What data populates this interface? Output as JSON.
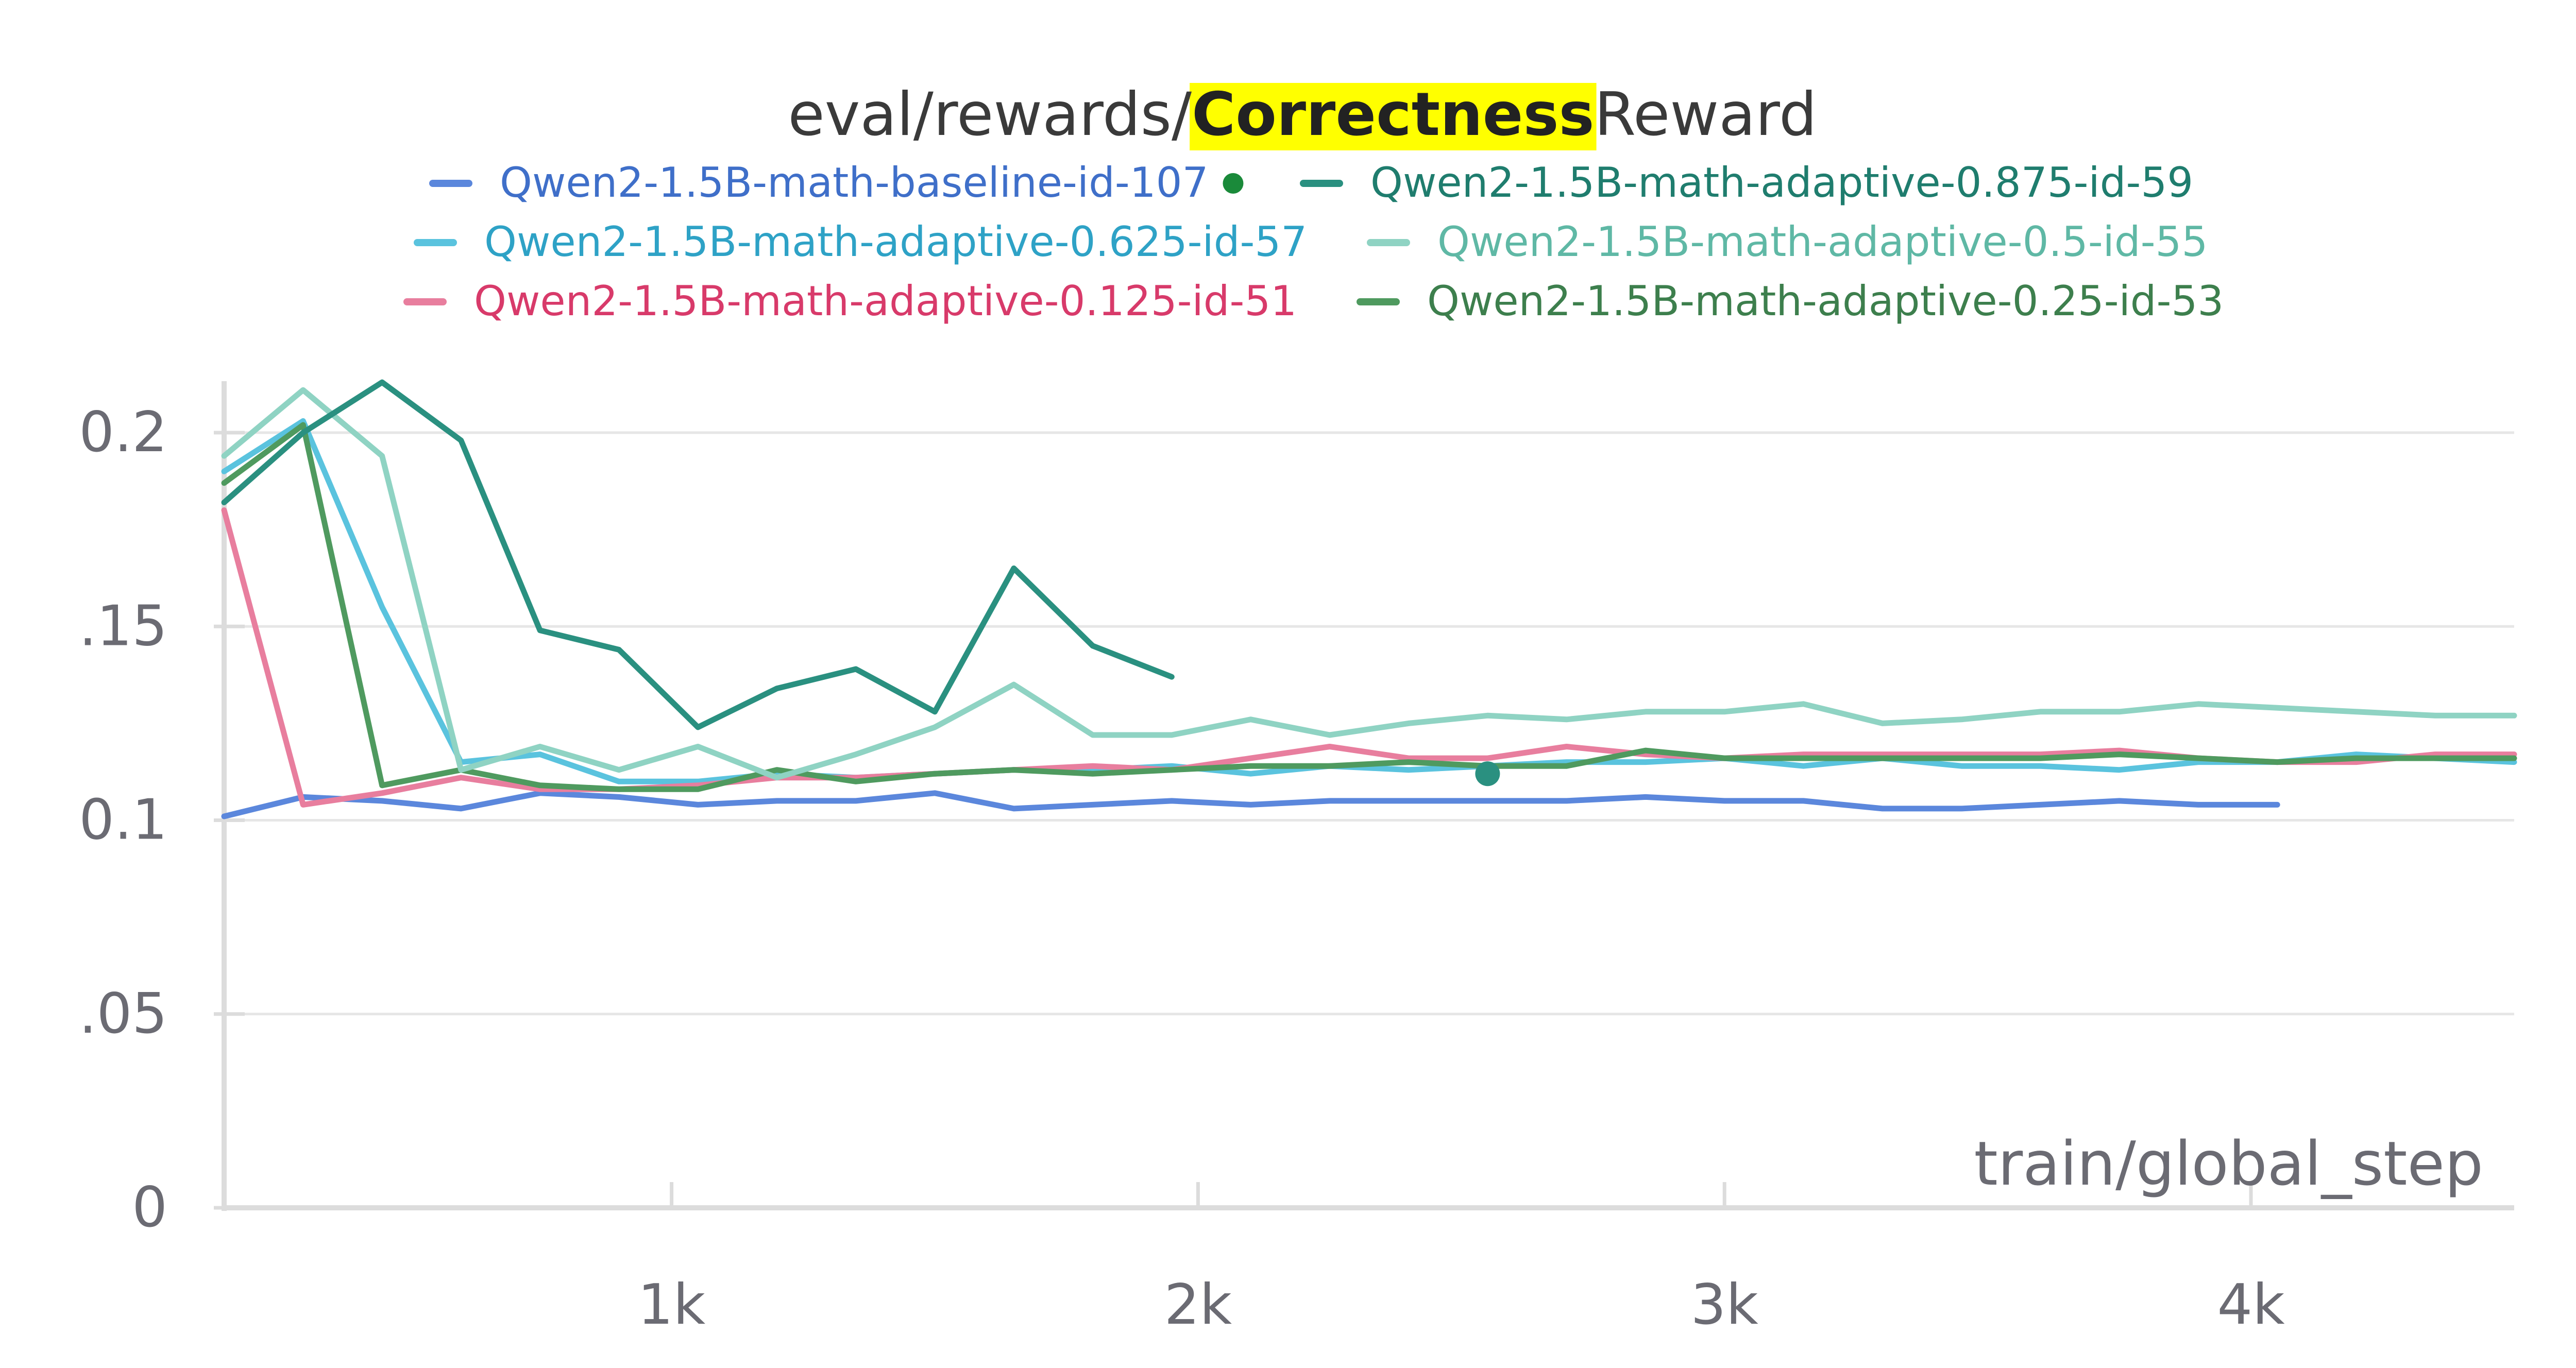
{
  "chart_data": {
    "type": "line",
    "title": {
      "prefix": "eval/rewards/",
      "highlight": "Correctness",
      "suffix": "Reward",
      "highlight_color": "#ffff00"
    },
    "xlabel": "train/global_step",
    "ylabel": "",
    "xlim": [
      150,
      4500
    ],
    "ylim": [
      0,
      0.21
    ],
    "x_ticks": [
      {
        "value": 1000,
        "label": "1k"
      },
      {
        "value": 2000,
        "label": "2k"
      },
      {
        "value": 3000,
        "label": "3k"
      },
      {
        "value": 4000,
        "label": "4k"
      }
    ],
    "y_ticks": [
      {
        "value": 0,
        "label": "0"
      },
      {
        "value": 0.05,
        "label": ".05"
      },
      {
        "value": 0.1,
        "label": "0.1"
      },
      {
        "value": 0.15,
        "label": ".15"
      },
      {
        "value": 0.2,
        "label": "0.2"
      }
    ],
    "grid": true,
    "legend_position": "top",
    "series": [
      {
        "name": "Qwen2-1.5B-math-baseline-id-107",
        "color": "#5b87dc",
        "label_color": "#3f6fc9",
        "x": [
          150,
          300,
          450,
          600,
          750,
          900,
          1050,
          1200,
          1350,
          1500,
          1650,
          1800,
          1950,
          2100,
          2250,
          2400,
          2550,
          2700,
          2850,
          3000,
          3150,
          3300,
          3450,
          3600,
          3750,
          3900,
          4050
        ],
        "y": [
          0.101,
          0.106,
          0.105,
          0.103,
          0.107,
          0.106,
          0.104,
          0.105,
          0.105,
          0.107,
          0.103,
          0.104,
          0.105,
          0.104,
          0.105,
          0.105,
          0.105,
          0.105,
          0.106,
          0.105,
          0.105,
          0.103,
          0.103,
          0.104,
          0.105,
          0.104,
          0.104
        ]
      },
      {
        "name": "Qwen2-1.5B-math-adaptive-0.875-id-59",
        "color": "#2a9080",
        "label_color": "#1f7d6e",
        "x": [
          150,
          300,
          450,
          600,
          750,
          900,
          1050,
          1200,
          1350,
          1500,
          1650,
          1800,
          1950
        ],
        "y": [
          0.182,
          0.2,
          0.213,
          0.198,
          0.149,
          0.144,
          0.124,
          0.134,
          0.139,
          0.128,
          0.165,
          0.145,
          0.137
        ]
      },
      {
        "name": "Qwen2-1.5B-math-adaptive-0.625-id-57",
        "color": "#5ac3de",
        "label_color": "#2ea2c6",
        "x": [
          150,
          300,
          450,
          600,
          750,
          900,
          1050,
          1200,
          1350,
          1500,
          1650,
          1800,
          1950,
          2100,
          2250,
          2400,
          2550,
          2700,
          2850,
          3000,
          3150,
          3300,
          3450,
          3600,
          3750,
          3900,
          4050,
          4200,
          4350,
          4500
        ],
        "y": [
          0.19,
          0.203,
          0.155,
          0.115,
          0.117,
          0.11,
          0.11,
          0.112,
          0.111,
          0.112,
          0.113,
          0.113,
          0.114,
          0.112,
          0.114,
          0.113,
          0.114,
          0.115,
          0.115,
          0.116,
          0.114,
          0.116,
          0.114,
          0.114,
          0.113,
          0.115,
          0.115,
          0.117,
          0.116,
          0.115
        ]
      },
      {
        "name": "Qwen2-1.5B-math-adaptive-0.5-id-55",
        "color": "#8fd3c3",
        "label_color": "#5fb8a5",
        "x": [
          150,
          300,
          450,
          600,
          750,
          900,
          1050,
          1200,
          1350,
          1500,
          1650,
          1800,
          1950,
          2100,
          2250,
          2400,
          2550,
          2700,
          2850,
          3000,
          3150,
          3300,
          3450,
          3600,
          3750,
          3900,
          4050,
          4200,
          4350,
          4500
        ],
        "y": [
          0.194,
          0.211,
          0.194,
          0.113,
          0.119,
          0.113,
          0.119,
          0.111,
          0.117,
          0.124,
          0.135,
          0.122,
          0.122,
          0.126,
          0.122,
          0.125,
          0.127,
          0.126,
          0.128,
          0.128,
          0.13,
          0.125,
          0.126,
          0.128,
          0.128,
          0.13,
          0.129,
          0.128,
          0.127,
          0.127
        ]
      },
      {
        "name": "Qwen2-1.5B-math-adaptive-0.125-id-51",
        "color": "#e87e9e",
        "label_color": "#d83a6a",
        "x": [
          150,
          300,
          450,
          600,
          750,
          900,
          1050,
          1200,
          1350,
          1500,
          1650,
          1800,
          1950,
          2100,
          2250,
          2400,
          2550,
          2700,
          2850,
          3000,
          3150,
          3300,
          3450,
          3600,
          3750,
          3900,
          4050,
          4200,
          4350,
          4500
        ],
        "y": [
          0.18,
          0.104,
          0.107,
          0.111,
          0.108,
          0.108,
          0.109,
          0.111,
          0.111,
          0.112,
          0.113,
          0.114,
          0.113,
          0.116,
          0.119,
          0.116,
          0.116,
          0.119,
          0.117,
          0.116,
          0.117,
          0.117,
          0.117,
          0.117,
          0.118,
          0.116,
          0.115,
          0.115,
          0.117,
          0.117
        ]
      },
      {
        "name": "Qwen2-1.5B-math-adaptive-0.25-id-53",
        "color": "#4f9a5f",
        "label_color": "#3d7f4d",
        "x": [
          150,
          300,
          450,
          600,
          750,
          900,
          1050,
          1200,
          1350,
          1500,
          1650,
          1800,
          1950,
          2100,
          2250,
          2400,
          2550,
          2700,
          2850,
          3000,
          3150,
          3300,
          3450,
          3600,
          3750,
          3900,
          4050,
          4200,
          4350,
          4500
        ],
        "y": [
          0.187,
          0.202,
          0.109,
          0.113,
          0.109,
          0.108,
          0.108,
          0.113,
          0.11,
          0.112,
          0.113,
          0.112,
          0.113,
          0.114,
          0.114,
          0.115,
          0.114,
          0.114,
          0.118,
          0.116,
          0.116,
          0.116,
          0.116,
          0.116,
          0.117,
          0.116,
          0.115,
          0.116,
          0.116,
          0.116
        ]
      }
    ],
    "highlight_points": [
      {
        "x": 2550,
        "y": 0.112,
        "color": "#2a9080"
      }
    ],
    "legend_marker_color": "#1a8a3a"
  }
}
